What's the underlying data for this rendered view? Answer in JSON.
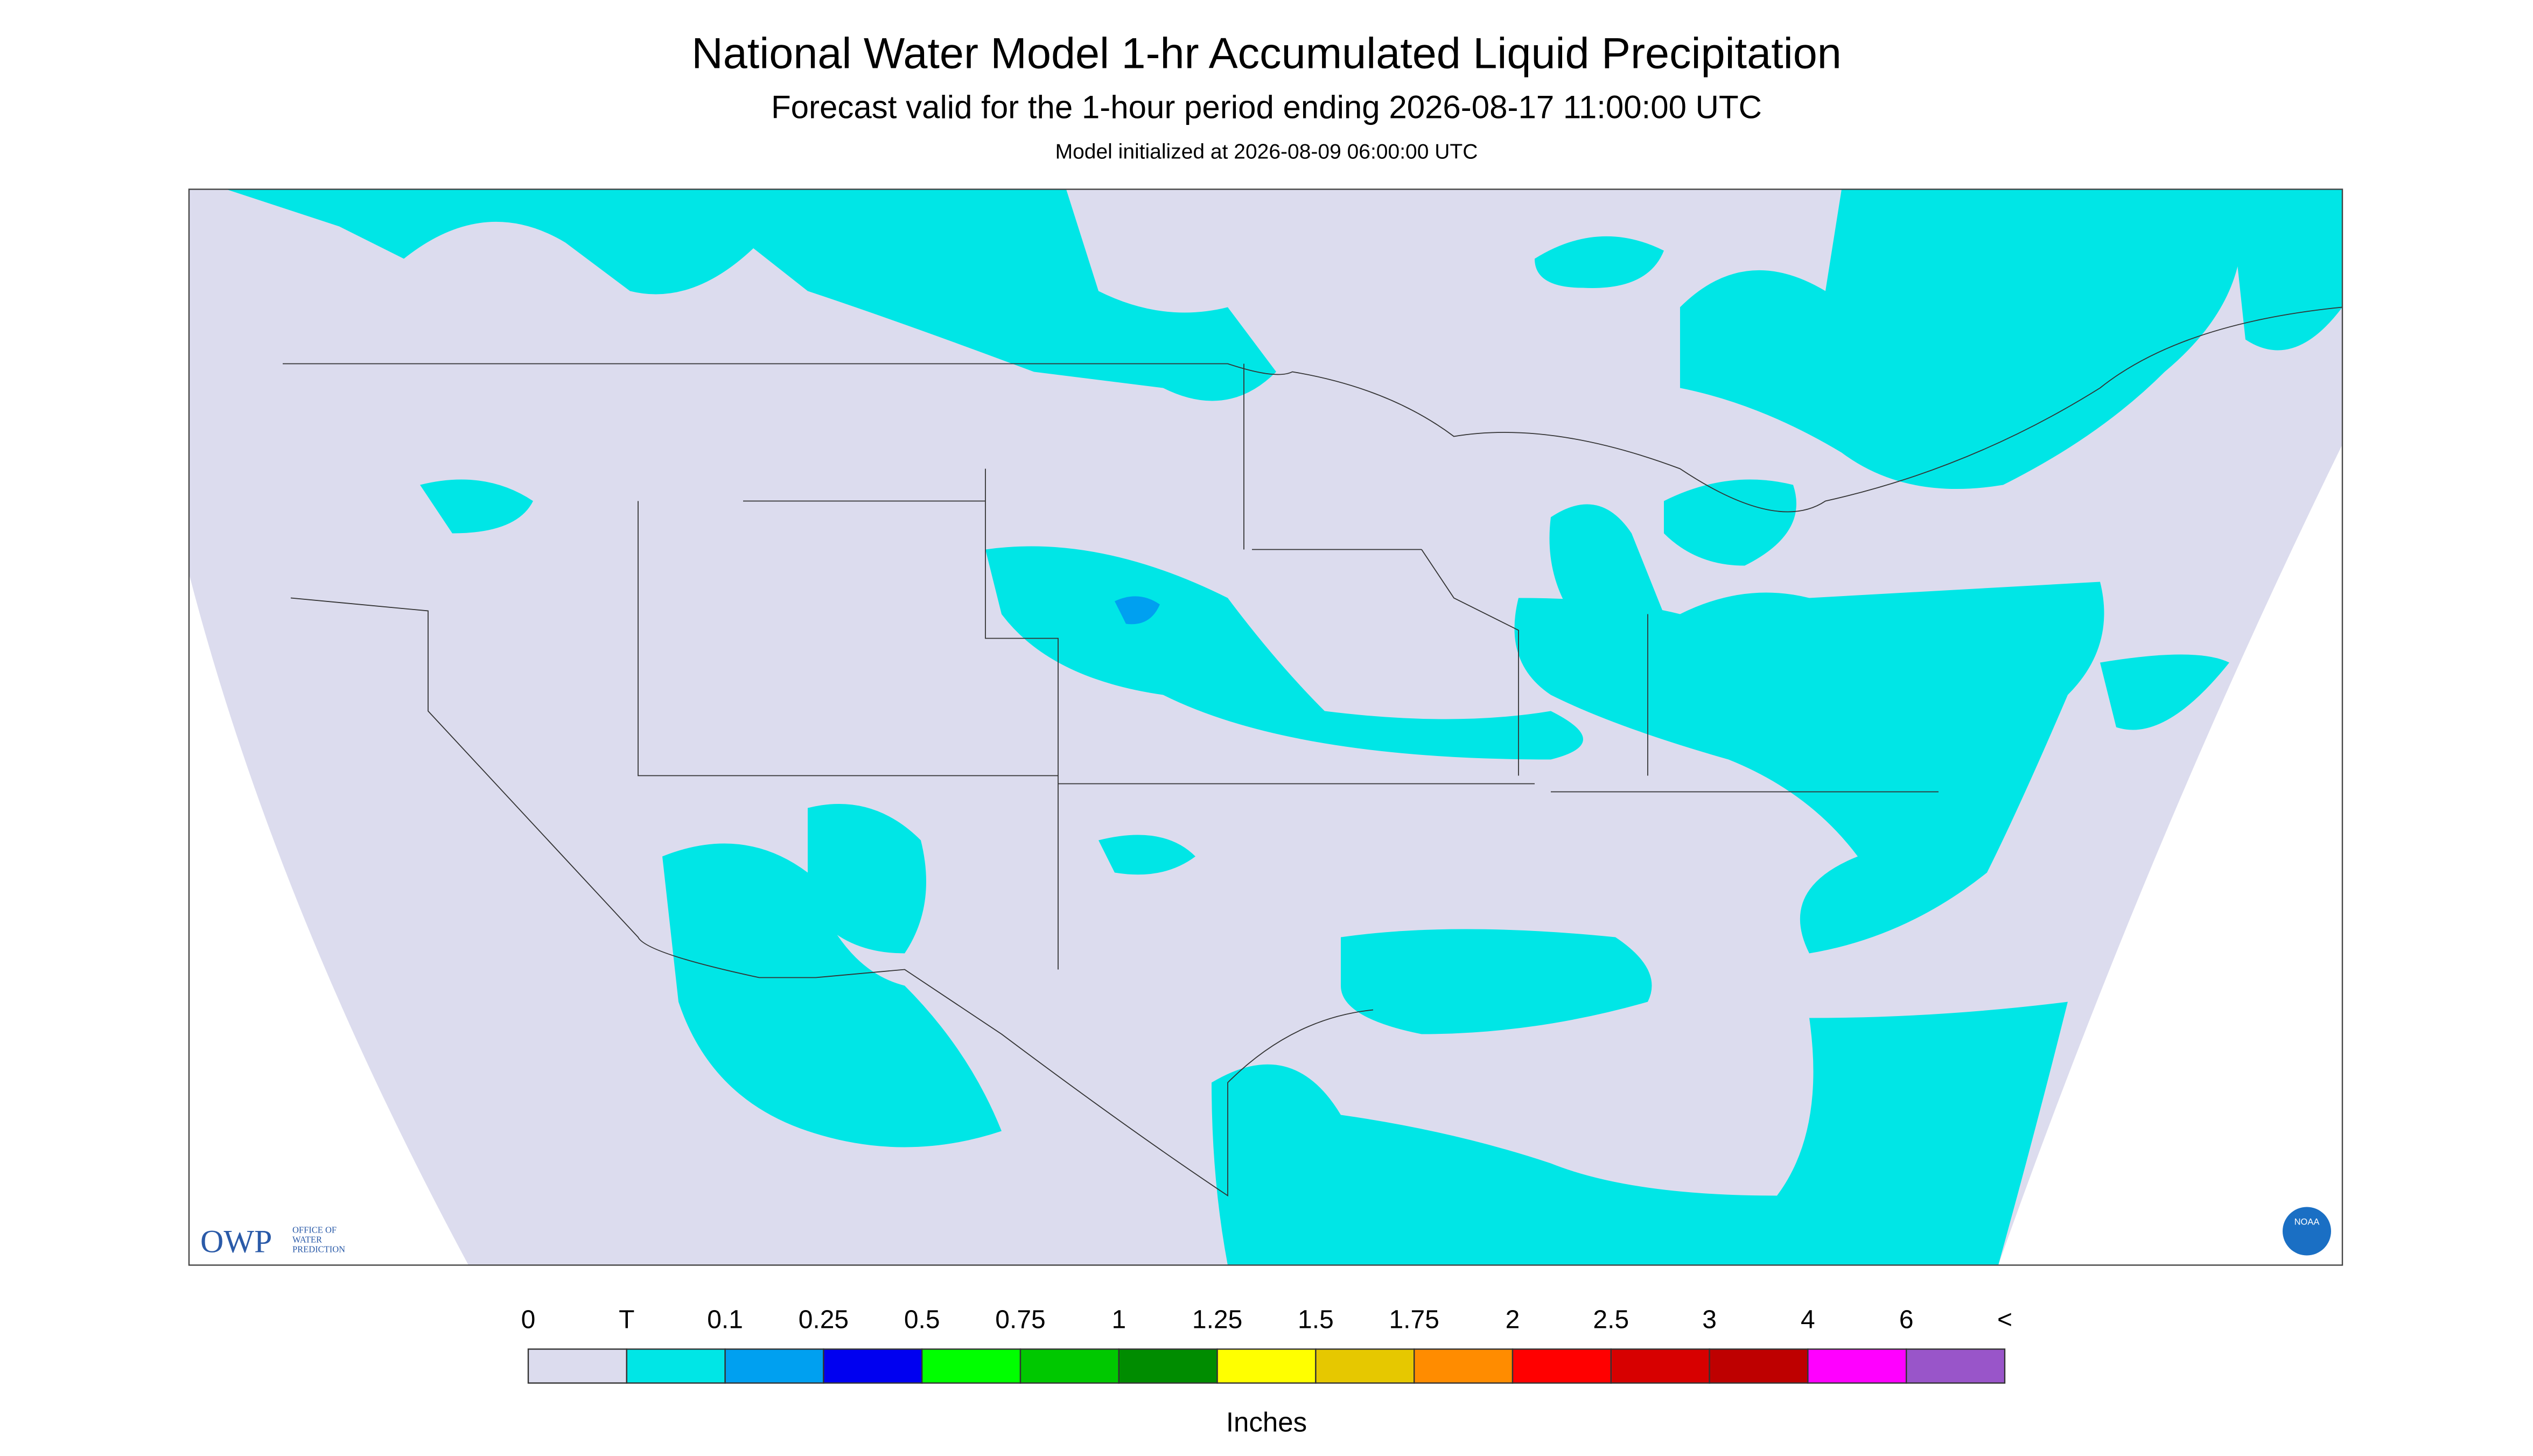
{
  "header": {
    "title": "National Water Model 1-hr Accumulated Liquid Precipitation",
    "subtitle": "Forecast valid for the 1-hour period ending 2026-08-17 11:00:00 UTC",
    "initialized": "Model initialized at 2026-08-09 06:00:00 UTC"
  },
  "colorbar": {
    "labels": [
      "0",
      "T",
      "0.1",
      "0.25",
      "0.5",
      "0.75",
      "1",
      "1.25",
      "1.5",
      "1.75",
      "2",
      "2.5",
      "3",
      "4",
      "6",
      "<"
    ],
    "colors": [
      "#dcdcee",
      "#00e6e6",
      "#00a0f0",
      "#0000f0",
      "#00ff00",
      "#00c800",
      "#008c00",
      "#ffff00",
      "#e6c800",
      "#ff8c00",
      "#ff0000",
      "#d70000",
      "#be0000",
      "#ff00ff",
      "#9955c9"
    ],
    "units": "Inches"
  },
  "logos": {
    "owp": "OWP",
    "owp_text": [
      "OFFICE OF",
      "WATER",
      "PREDICTION"
    ],
    "noaa": "NOAA"
  }
}
